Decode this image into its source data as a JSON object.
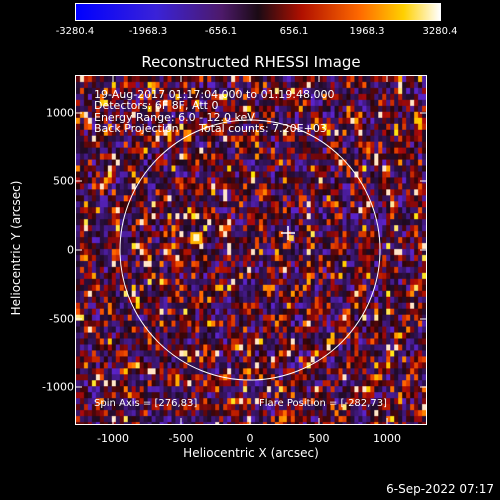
{
  "colorbar": {
    "ticks": [
      "-3280.4",
      "-1968.3",
      "-656.1",
      "656.1",
      "1968.3",
      "3280.4"
    ]
  },
  "plot": {
    "title": "Reconstructed RHESSI Image",
    "xlabel": "Heliocentric X (arcsec)",
    "ylabel": "Heliocentric Y (arcsec)",
    "xticks": [
      "-1000",
      "-500",
      "0",
      "500",
      "1000"
    ],
    "yticks": [
      "1000",
      "500",
      "0",
      "-500",
      "-1000"
    ],
    "info": {
      "time_range": "19-Aug-2017 01:17:04.000 to 01:19:48.000",
      "detectors": "Detectors: 6F 8F, Att 0",
      "energy": "Energy Range: 6.0 - 12.0 keV",
      "method": "Back Projection",
      "counts": "Total counts: 7.20E+03",
      "spin_axis": "Spin Axis = [276,83]",
      "flare_position": "Flare Position = [-282,73]"
    }
  },
  "footer": {
    "date": "6-Sep-2022 07:17"
  }
}
